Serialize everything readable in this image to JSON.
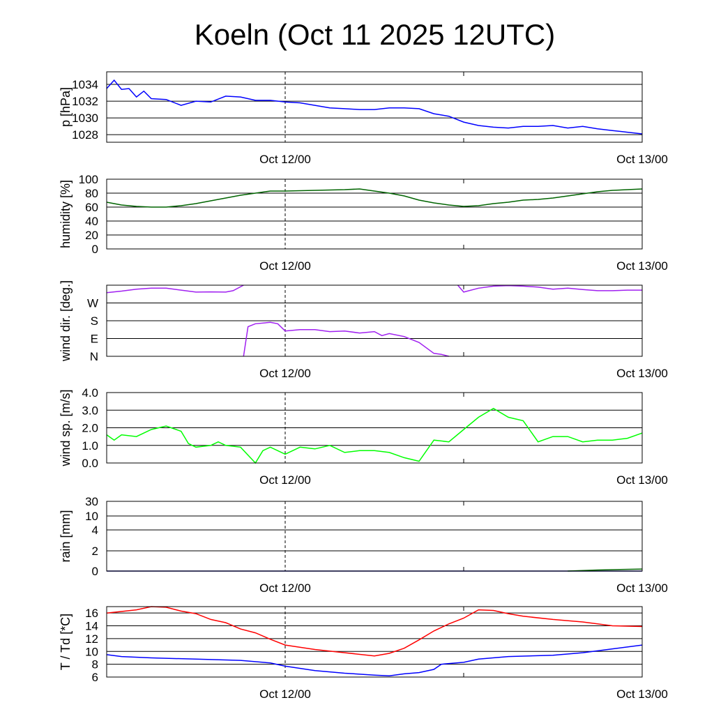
{
  "chart_data": [
    {
      "type": "line",
      "id": "pressure",
      "ylabel": "p [hPa]",
      "ylim": [
        1027.1,
        1035.5
      ],
      "yticks": [
        {
          "v": 1028,
          "label": "1028"
        },
        {
          "v": 1030,
          "label": "1030"
        },
        {
          "v": 1032,
          "label": "1032"
        },
        {
          "v": 1034,
          "label": "1034"
        }
      ],
      "series": [
        {
          "name": "pressure",
          "color": "#0000ff",
          "x": [
            0,
            0.5,
            1,
            1.5,
            2,
            2.5,
            3,
            4,
            5,
            6,
            7,
            8,
            9,
            10,
            11,
            12,
            13,
            14,
            15,
            16,
            17,
            18,
            19,
            20,
            21,
            22,
            23,
            24,
            25,
            26,
            27,
            28,
            29,
            30,
            31,
            32,
            33,
            34,
            35,
            36
          ],
          "y": [
            1033.5,
            1034.5,
            1033.4,
            1033.5,
            1032.5,
            1033.2,
            1032.3,
            1032.2,
            1031.5,
            1032.0,
            1031.9,
            1032.6,
            1032.5,
            1032.1,
            1032.1,
            1031.9,
            1031.8,
            1031.5,
            1031.2,
            1031.1,
            1031.0,
            1031.0,
            1031.2,
            1031.2,
            1031.1,
            1030.5,
            1030.2,
            1029.5,
            1029.1,
            1028.9,
            1028.8,
            1029.0,
            1029.0,
            1029.1,
            1028.8,
            1029.0,
            1028.7,
            1028.5,
            1028.3,
            1028.1
          ]
        }
      ]
    },
    {
      "type": "line",
      "id": "humidity",
      "ylabel": "humidity [%]",
      "ylim": [
        0,
        100
      ],
      "yticks": [
        {
          "v": 0,
          "label": "0"
        },
        {
          "v": 20,
          "label": "20"
        },
        {
          "v": 40,
          "label": "40"
        },
        {
          "v": 60,
          "label": "60"
        },
        {
          "v": 80,
          "label": "80"
        },
        {
          "v": 100,
          "label": "100"
        }
      ],
      "series": [
        {
          "name": "humidity",
          "color": "#006400",
          "x": [
            0,
            1,
            2,
            3,
            4,
            5,
            6,
            7,
            8,
            9,
            10,
            11,
            12,
            14,
            16,
            17,
            18,
            19,
            20,
            21,
            22,
            23,
            24,
            25,
            26,
            27,
            28,
            29,
            30,
            31,
            32,
            33,
            34,
            35,
            36
          ],
          "y": [
            67,
            63,
            61,
            60,
            60,
            62,
            65,
            69,
            73,
            77,
            80,
            83,
            83,
            84,
            85,
            86,
            83,
            80,
            76,
            70,
            66,
            63,
            61,
            62,
            65,
            67,
            70,
            71,
            73,
            76,
            79,
            82,
            84,
            85,
            86
          ]
        }
      ]
    },
    {
      "type": "scatter",
      "id": "wind_direction",
      "ylabel": "wind dir. [deg.]",
      "ylim": [
        0,
        360
      ],
      "yticks": [
        {
          "v": 0,
          "label": "N"
        },
        {
          "v": 90,
          "label": "E"
        },
        {
          "v": 180,
          "label": "S"
        },
        {
          "v": 270,
          "label": "W"
        }
      ],
      "series": [
        {
          "name": "wind dir part 1",
          "color": "#a020f0",
          "x": [
            0,
            1,
            2,
            3,
            4,
            5,
            6,
            7,
            8,
            8.5,
            9.2
          ],
          "y": [
            322,
            330,
            340,
            345,
            345,
            335,
            325,
            326,
            325,
            332,
            360
          ]
        },
        {
          "name": "wind dir part 2",
          "color": "#a020f0",
          "x": [
            9.2,
            9.5,
            10,
            11,
            11.5,
            12,
            13,
            14,
            15,
            16,
            17,
            18,
            18.5,
            19,
            20,
            21,
            22,
            22.5,
            23
          ],
          "y": [
            0,
            150,
            165,
            172,
            165,
            128,
            135,
            135,
            125,
            128,
            118,
            125,
            105,
            115,
            100,
            70,
            15,
            10,
            0
          ]
        },
        {
          "name": "wind dir part 3",
          "color": "#a020f0",
          "x": [
            23.6,
            24,
            25,
            26,
            27,
            28,
            29,
            30,
            31,
            32,
            33,
            34,
            35,
            36
          ],
          "y": [
            360,
            325,
            345,
            355,
            358,
            355,
            350,
            340,
            345,
            338,
            332,
            332,
            335,
            335
          ]
        }
      ]
    },
    {
      "type": "line",
      "id": "wind_speed",
      "ylabel": "wind sp. [m/s]",
      "ylim": [
        0,
        4
      ],
      "yticks": [
        {
          "v": 0,
          "label": "0.0"
        },
        {
          "v": 1,
          "label": "1.0"
        },
        {
          "v": 2,
          "label": "2.0"
        },
        {
          "v": 3,
          "label": "3.0"
        },
        {
          "v": 4,
          "label": "4.0"
        }
      ],
      "series": [
        {
          "name": "wind speed",
          "color": "#00ff00",
          "x": [
            0,
            0.5,
            1,
            2,
            3,
            4,
            5,
            5.5,
            6,
            7,
            7.5,
            8,
            9,
            10,
            10.5,
            11,
            12,
            13,
            14,
            15,
            16,
            17,
            18,
            19,
            20,
            21,
            22,
            23,
            24,
            25,
            26,
            27,
            28,
            29,
            30,
            31,
            32,
            33,
            34,
            35,
            36
          ],
          "y": [
            1.6,
            1.3,
            1.6,
            1.5,
            1.9,
            2.1,
            1.8,
            1.1,
            0.9,
            1.0,
            1.2,
            1.0,
            0.9,
            0.0,
            0.7,
            0.9,
            0.5,
            0.9,
            0.8,
            1.0,
            0.6,
            0.7,
            0.7,
            0.6,
            0.3,
            0.1,
            1.3,
            1.2,
            1.9,
            2.6,
            3.1,
            2.6,
            2.4,
            1.2,
            1.5,
            1.5,
            1.2,
            1.3,
            1.3,
            1.4,
            1.7
          ]
        }
      ]
    },
    {
      "type": "line",
      "id": "rain",
      "ylabel": "rain [mm]",
      "scale": "nonlinear",
      "yticks": [
        {
          "v": 0,
          "label": "0",
          "f": 0
        },
        {
          "v": 2,
          "label": "2",
          "f": 0.29
        },
        {
          "v": 4,
          "label": "4",
          "f": 0.59
        },
        {
          "v": 10,
          "label": "10",
          "f": 0.79
        },
        {
          "v": 30,
          "label": "30",
          "f": 1
        }
      ],
      "series": [
        {
          "name": "rain",
          "color": "#00008b",
          "x": [
            0,
            36
          ],
          "y": [
            0,
            0
          ]
        },
        {
          "name": "rain accumulated",
          "color": "#006400",
          "x": [
            31,
            33,
            36
          ],
          "y": [
            0,
            0.1,
            0.2
          ]
        }
      ]
    },
    {
      "type": "line",
      "id": "temperature",
      "ylabel": "T / Td [*C]",
      "ylim": [
        6,
        17
      ],
      "yticks": [
        {
          "v": 6,
          "label": "6"
        },
        {
          "v": 8,
          "label": "8"
        },
        {
          "v": 10,
          "label": "10"
        },
        {
          "v": 12,
          "label": "12"
        },
        {
          "v": 14,
          "label": "14"
        },
        {
          "v": 16,
          "label": "16"
        }
      ],
      "series": [
        {
          "name": "T",
          "color": "#ff0000",
          "x": [
            0,
            2,
            3,
            4,
            5,
            6,
            7,
            8,
            9,
            10,
            11,
            12,
            14,
            16,
            18,
            19,
            20,
            21,
            22,
            23,
            24,
            25,
            26,
            27,
            28,
            30,
            32,
            34,
            36
          ],
          "y": [
            16,
            16.5,
            17,
            16.9,
            16.3,
            15.9,
            15.0,
            14.5,
            13.5,
            12.9,
            11.9,
            11.0,
            10.3,
            9.8,
            9.3,
            9.7,
            10.5,
            11.8,
            13.2,
            14.3,
            15.2,
            16.5,
            16.4,
            15.9,
            15.5,
            15.0,
            14.6,
            14.0,
            13.9
          ]
        },
        {
          "name": "Td",
          "color": "#0000ff",
          "x": [
            0,
            1,
            3,
            6,
            9,
            11,
            12,
            14,
            16,
            18,
            19,
            20,
            21,
            22,
            22.5,
            24,
            25,
            27,
            30,
            32,
            34,
            36
          ],
          "y": [
            9.5,
            9.2,
            9.0,
            8.8,
            8.6,
            8.2,
            7.7,
            7.0,
            6.6,
            6.3,
            6.2,
            6.5,
            6.7,
            7.2,
            8.0,
            8.3,
            8.8,
            9.2,
            9.4,
            9.8,
            10.4,
            11.0
          ]
        }
      ]
    }
  ],
  "title": "Koeln (Oct 11 2025 12UTC)",
  "xaxis": {
    "range_hours": [
      0,
      36
    ],
    "ticks": [
      {
        "h": 12,
        "label": "Oct 12/00"
      },
      {
        "h": 36,
        "label": "Oct 13/00"
      }
    ],
    "minor_tick_hours": [
      24
    ],
    "dashed_line_hour": 12
  }
}
